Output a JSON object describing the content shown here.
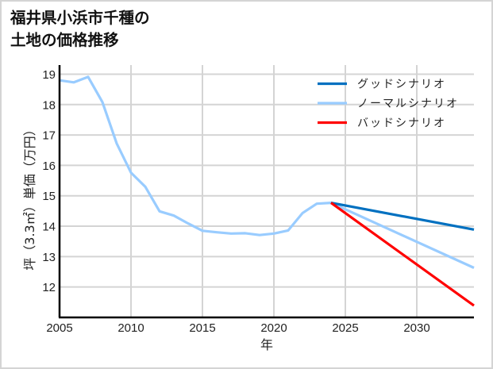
{
  "title": {
    "line1": "福井県小浜市千種の",
    "line2": "土地の価格推移"
  },
  "colors": {
    "good": "#0070c0",
    "normal": "#99ccff",
    "bad": "#ff0000",
    "grid": "#d4d4d4",
    "axis": "#000000"
  },
  "chart_data": {
    "type": "line",
    "title": "福井県小浜市千種の土地の価格推移",
    "xlabel": "年",
    "ylabel": "坪（3.3㎡）単価（万円）",
    "xlim": [
      2005,
      2034
    ],
    "ylim": [
      11.0,
      19.3
    ],
    "x_ticks": [
      2005,
      2010,
      2015,
      2020,
      2025,
      2030
    ],
    "y_ticks": [
      12,
      13,
      14,
      15,
      16,
      17,
      18,
      19
    ],
    "grid": true,
    "legend_position": "upper right",
    "series": [
      {
        "name": "ノーマルシナリオ",
        "color": "#99ccff",
        "x": [
          2005,
          2006,
          2007,
          2008,
          2009,
          2010,
          2011,
          2012,
          2013,
          2014,
          2015,
          2016,
          2017,
          2018,
          2019,
          2020,
          2021,
          2022,
          2023,
          2024,
          2034
        ],
        "values": [
          18.8,
          18.73,
          18.91,
          18.08,
          16.72,
          15.76,
          15.3,
          14.49,
          14.35,
          14.09,
          13.85,
          13.8,
          13.76,
          13.77,
          13.71,
          13.76,
          13.86,
          14.43,
          14.74,
          14.77,
          12.63
        ]
      },
      {
        "name": "グッドシナリオ",
        "color": "#0070c0",
        "x": [
          2024,
          2034
        ],
        "values": [
          14.77,
          13.89
        ]
      },
      {
        "name": "バッドシナリオ",
        "color": "#ff0000",
        "x": [
          2024,
          2034
        ],
        "values": [
          14.77,
          11.39
        ]
      }
    ]
  },
  "legend": [
    {
      "label": "グッドシナリオ",
      "color": "#0070c0"
    },
    {
      "label": "ノーマルシナリオ",
      "color": "#99ccff"
    },
    {
      "label": "バッドシナリオ",
      "color": "#ff0000"
    }
  ],
  "axes": {
    "xlabel": "年",
    "ylabel": "坪（3.3㎡）単価（万円）",
    "x_tick_labels": [
      "2005",
      "2010",
      "2015",
      "2020",
      "2025",
      "2030"
    ],
    "y_tick_labels": [
      "12",
      "13",
      "14",
      "15",
      "16",
      "17",
      "18",
      "19"
    ]
  }
}
